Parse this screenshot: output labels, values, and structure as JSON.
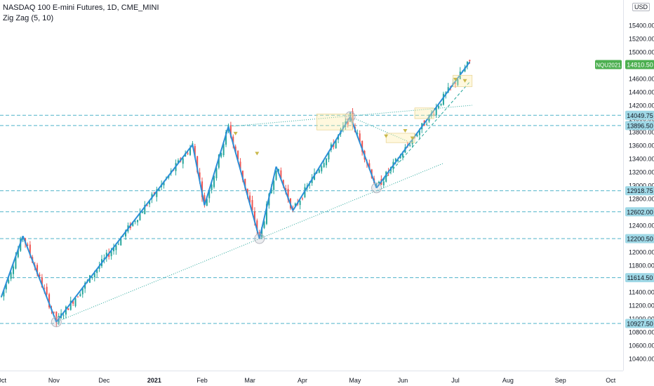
{
  "legend": {
    "symbol": "NASDAQ 100 E-mini Futures, 1D, CME_MINI",
    "indicator": "Zig Zag (5, 10)"
  },
  "currency": "USD",
  "colors": {
    "up": "#26a69a",
    "down": "#ef5350",
    "zigzag": "#2b8fd8",
    "level": "#4fb3c9",
    "trend": "#26a69a",
    "last_badge": "#4caf50"
  },
  "chart_data": {
    "type": "line",
    "title": "",
    "xlabel": "",
    "ylabel": "",
    "ylim": [
      10200,
      15700
    ],
    "y_ticks": [
      10400,
      10600,
      10800,
      11000,
      11200,
      11400,
      11600,
      11800,
      12000,
      12200,
      12400,
      12600,
      12800,
      13000,
      13200,
      13400,
      13600,
      13800,
      14000,
      14200,
      14400,
      14600,
      14800,
      15000,
      15200,
      15400
    ],
    "y_tick_labels": [
      "10400.00",
      "10600.00",
      "10800.00",
      "11000.00",
      "11200.00",
      "11400.00",
      "11600.00",
      "11800.00",
      "12000.00",
      "12200.00",
      "12400.00",
      "12600.00",
      "12800.00",
      "13000.00",
      "13200.00",
      "13400.00",
      "13600.00",
      "13800.00",
      "14000.00",
      "14200.00",
      "14400.00",
      "14600.00",
      "14800.00",
      "15000.00",
      "15200.00",
      "15400.00"
    ],
    "x_ticks": [
      "Oct",
      "Nov",
      "Dec",
      "2021",
      "Feb",
      "Mar",
      "Apr",
      "May",
      "Jun",
      "Jul",
      "Aug",
      "Sep",
      "Oct"
    ],
    "x_tick_index": [
      0,
      22,
      43,
      64,
      84,
      104,
      126,
      148,
      168,
      190,
      212,
      234,
      255
    ],
    "zigzag": [
      {
        "x": 0,
        "y": 11330
      },
      {
        "x": 9,
        "y": 12240
      },
      {
        "x": 23,
        "y": 10950
      },
      {
        "x": 80,
        "y": 13610
      },
      {
        "x": 85,
        "y": 12700
      },
      {
        "x": 95,
        "y": 13880
      },
      {
        "x": 108,
        "y": 12200
      },
      {
        "x": 115,
        "y": 13280
      },
      {
        "x": 122,
        "y": 12620
      },
      {
        "x": 146,
        "y": 14030
      },
      {
        "x": 157,
        "y": 12960
      },
      {
        "x": 196,
        "y": 14850
      }
    ],
    "levels": [
      {
        "value": 14049.75,
        "label": "14049.75"
      },
      {
        "value": 13896.5,
        "label": "13896.50"
      },
      {
        "value": 12918.75,
        "label": "12918.75"
      },
      {
        "value": 12602.0,
        "label": "12602.00"
      },
      {
        "value": 12200.5,
        "label": "12200.50"
      },
      {
        "value": 11614.5,
        "label": "11614.50"
      },
      {
        "value": 10927.5,
        "label": "10927.50"
      }
    ],
    "last_price": {
      "name": "NQU2021",
      "value": 14810.5,
      "label": "14810.50"
    }
  }
}
